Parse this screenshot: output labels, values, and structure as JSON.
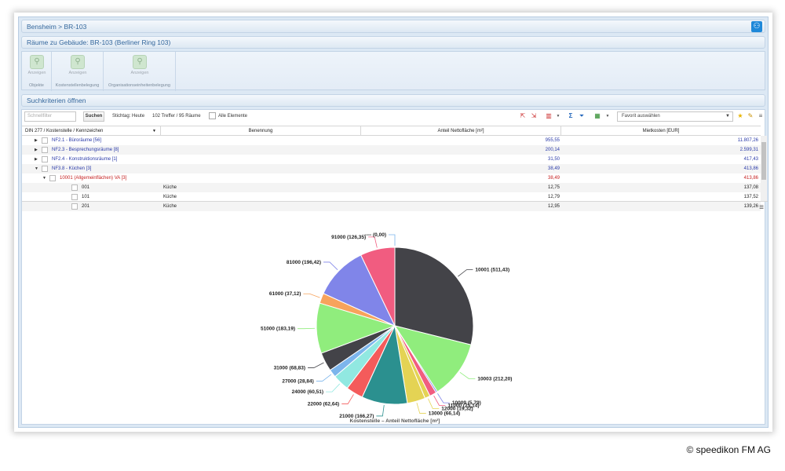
{
  "breadcrumb": "Bensheim > BR-103",
  "page_title": "Räume zu Gebäude: BR-103 (Berliner Ring 103)",
  "ribbon": {
    "groups": [
      {
        "label": "Objekte",
        "button": "Anzeigen"
      },
      {
        "label": "Kostenstellenbelegung",
        "button": "Anzeigen"
      },
      {
        "label": "Organisationseinheitenbelegung",
        "button": "Anzeigen"
      }
    ]
  },
  "search_criteria_label": "Suchkriterien öffnen",
  "toolbar": {
    "quickfilter_placeholder": "Schnellfilter",
    "search_button": "Suchen",
    "stichtag": "Stichtag: Heute",
    "treffer": "102 Treffer / 95 Räume",
    "alle_elemente": "Alle Elemente",
    "favorit_placeholder": "Favorit auswählen"
  },
  "table": {
    "columns": [
      "DIN 277 / Kostenstelle / Kennzeichen",
      "Benennung",
      "Anteil Nettofläche [m²]",
      "Mietkosten [EUR]"
    ],
    "rows": [
      {
        "name": "NF2.1 - Büroräume [56]",
        "benennung": "",
        "flaeche": "955,55",
        "kosten": "11.807,26",
        "style": "blue",
        "level": 0,
        "expand": "▶"
      },
      {
        "name": "NF2.3 - Besprechungsräume [8]",
        "benennung": "",
        "flaeche": "200,14",
        "kosten": "2.599,31",
        "style": "blue",
        "level": 0,
        "expand": "▶"
      },
      {
        "name": "NF2.4 - Konstruktionsräume [1]",
        "benennung": "",
        "flaeche": "31,50",
        "kosten": "417,43",
        "style": "blue",
        "level": 0,
        "expand": "▶"
      },
      {
        "name": "NF3.8 - Küchen [3]",
        "benennung": "",
        "flaeche": "38,49",
        "kosten": "413,86",
        "style": "blue",
        "level": 0,
        "expand": "▼"
      },
      {
        "name": "10001 (Allgemeinflächen) VA [3]",
        "benennung": "",
        "flaeche": "38,49",
        "kosten": "413,86",
        "style": "red",
        "level": 1,
        "expand": "▼"
      },
      {
        "name": "001",
        "benennung": "Küche",
        "flaeche": "12,75",
        "kosten": "137,08",
        "style": "dark",
        "level": 2,
        "expand": ""
      },
      {
        "name": "101",
        "benennung": "Küche",
        "flaeche": "12,79",
        "kosten": "137,52",
        "style": "dark",
        "level": 2,
        "expand": ""
      },
      {
        "name": "201",
        "benennung": "Küche",
        "flaeche": "12,95",
        "kosten": "139,26",
        "style": "dark",
        "level": 2,
        "expand": ""
      }
    ]
  },
  "chart_data": {
    "type": "pie",
    "title": "Kostenstelle – Anteil Nettofläche [m²]",
    "slices": [
      {
        "label": "10001 (511,43)",
        "value": 511.43,
        "color": "#434348"
      },
      {
        "label": "10003 (212,20)",
        "value": 212.2,
        "color": "#90ed7d"
      },
      {
        "label": "10009 (5,79)",
        "value": 5.79,
        "color": "#8085e9"
      },
      {
        "label": "11000 (25,14)",
        "value": 25.14,
        "color": "#f15c80"
      },
      {
        "label": "12000 (19,32)",
        "value": 19.32,
        "color": "#e4d354"
      },
      {
        "label": "13000 (66,14)",
        "value": 66.14,
        "color": "#e4d354"
      },
      {
        "label": "21000 (166,27)",
        "value": 166.27,
        "color": "#2b908f"
      },
      {
        "label": "22000 (62,64)",
        "value": 62.64,
        "color": "#f45b5b"
      },
      {
        "label": "24000 (60,51)",
        "value": 60.51,
        "color": "#91e8e1"
      },
      {
        "label": "27000 (28,84)",
        "value": 28.84,
        "color": "#7cb5ec"
      },
      {
        "label": "31000 (68,83)",
        "value": 68.83,
        "color": "#434348"
      },
      {
        "label": "51000 (183,19)",
        "value": 183.19,
        "color": "#90ed7d"
      },
      {
        "label": "61000 (37,12)",
        "value": 37.12,
        "color": "#f7a35c"
      },
      {
        "label": "81000 (196,42)",
        "value": 196.42,
        "color": "#8085e9"
      },
      {
        "label": "91000 (126,35)",
        "value": 126.35,
        "color": "#f15c80"
      },
      {
        "label": "---- (0,00)",
        "value": 0.0,
        "color": "#7cb5ec"
      }
    ]
  },
  "copyright": "© speedikon FM AG"
}
